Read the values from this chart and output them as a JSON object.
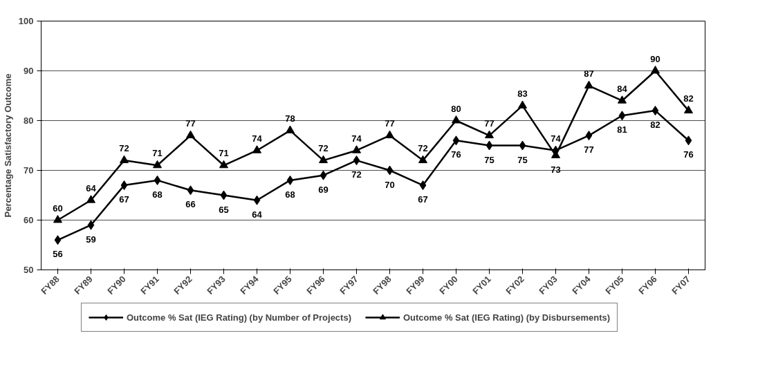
{
  "chart_data": {
    "type": "line",
    "ylabel": "Percentage Satisfactory Outcome",
    "categories": [
      "FY88",
      "FY89",
      "FY90",
      "FY91",
      "FY92",
      "FY93",
      "FY94",
      "FY95",
      "FY96",
      "FY97",
      "FY98",
      "FY99",
      "FY00",
      "FY01",
      "FY02",
      "FY03",
      "FY04",
      "FY05",
      "FY06",
      "FY07"
    ],
    "series": [
      {
        "name": "Outcome % Sat (IEG Rating) (by Number of Projects)",
        "color": "#000000",
        "marker": "diamond",
        "values": [
          56,
          59,
          67,
          68,
          66,
          65,
          64,
          68,
          69,
          72,
          70,
          67,
          76,
          75,
          75,
          74,
          77,
          81,
          82,
          76
        ]
      },
      {
        "name": "Outcome % Sat (IEG Rating) (by Disbursements)",
        "color": "#000000",
        "marker": "triangle",
        "values": [
          60,
          64,
          72,
          71,
          77,
          71,
          74,
          78,
          72,
          74,
          77,
          72,
          80,
          77,
          83,
          73,
          87,
          84,
          90,
          82
        ]
      }
    ],
    "ylim": [
      50,
      100
    ],
    "yticks": [
      50,
      60,
      70,
      80,
      90,
      100
    ],
    "grid": "y",
    "legend": "bottom",
    "data_labels": true,
    "line_style": "solid"
  }
}
